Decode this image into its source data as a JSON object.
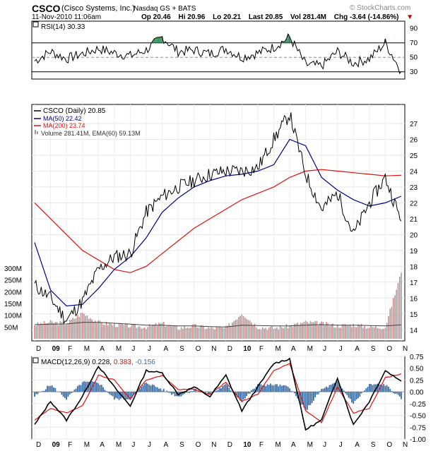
{
  "header": {
    "symbol": "CSCO",
    "name": "(Cisco Systems, Inc.)",
    "exchange": "Nasdaq GS + BATS",
    "brand": "© StockCharts.com",
    "date": "11-Nov-2010 11:06am",
    "open": "Op 20.46",
    "high": "Hi 20.96",
    "low": "Lo 20.21",
    "last": "Last 20.85",
    "volume": "Vol 281.4M",
    "change": "Chg -3.64 (-14.86%)",
    "change_marker": "▼"
  },
  "rsi_legend": "RSI(14) 30.33",
  "price_legend": {
    "main": "CSCO (Daily) 20.85",
    "ma50": "MA(50) 22.42",
    "ma200": "MA(200) 23.74",
    "volume": "Volume 281.41M, EMA(60) 59.13M"
  },
  "macd_legend": {
    "main": "MACD(12,26,9) 0.228,",
    "signal": "0.383,",
    "hist": "-0.156"
  },
  "colors": {
    "price": "#000000",
    "up_bar": "#000000",
    "down_bar": "#c00000",
    "ma50": "#00008b",
    "ma200": "#e01010",
    "volume_up": "#a0a0a0",
    "volume_down": "#e08080",
    "volume_ema": "#404040",
    "rsi_fill": "#2e8b57",
    "macd_hist": "#3a6ea5",
    "macd_signal": "#e01010"
  },
  "x_axis_labels": [
    "D",
    "09",
    "F",
    "M",
    "A",
    "M",
    "J",
    "J",
    "A",
    "S",
    "O",
    "N",
    "D",
    "10",
    "F",
    "M",
    "A",
    "M",
    "J",
    "J",
    "A",
    "S",
    "O",
    "N"
  ],
  "chart_data": [
    {
      "type": "line",
      "title": "RSI(14)",
      "ylim": [
        20,
        100
      ],
      "yticks": [
        30,
        50,
        70,
        90
      ],
      "reference_lines": [
        30,
        50,
        70
      ],
      "x": [
        "2008-12",
        "2009-01",
        "2009-02",
        "2009-03",
        "2009-04",
        "2009-05",
        "2009-06",
        "2009-07",
        "2009-08",
        "2009-09",
        "2009-10",
        "2009-11",
        "2009-12",
        "2010-01",
        "2010-02",
        "2010-03",
        "2010-04",
        "2010-05",
        "2010-06",
        "2010-07",
        "2010-08",
        "2010-09",
        "2010-10",
        "2010-11"
      ],
      "values": [
        45,
        58,
        48,
        55,
        62,
        56,
        52,
        60,
        78,
        58,
        60,
        55,
        62,
        50,
        56,
        64,
        78,
        40,
        38,
        58,
        42,
        48,
        70,
        30.33
      ]
    },
    {
      "type": "line",
      "title": "CSCO (Daily)",
      "ylim": [
        13.3,
        28.2
      ],
      "yticks": [
        14,
        15,
        16,
        17,
        18,
        19,
        20,
        21,
        22,
        23,
        24,
        25,
        26,
        27
      ],
      "x": [
        "2008-12",
        "2009-01",
        "2009-02",
        "2009-03",
        "2009-04",
        "2009-05",
        "2009-06",
        "2009-07",
        "2009-08",
        "2009-09",
        "2009-10",
        "2009-11",
        "2009-12",
        "2010-01",
        "2010-02",
        "2010-03",
        "2010-04",
        "2010-05",
        "2010-06",
        "2010-07",
        "2010-08",
        "2010-09",
        "2010-10",
        "2010-11"
      ],
      "series": [
        {
          "name": "CSCO (Daily)",
          "values": [
            16.8,
            16.0,
            14.6,
            15.8,
            17.8,
            18.6,
            18.8,
            21.4,
            22.4,
            23.0,
            23.4,
            23.8,
            24.0,
            24.0,
            24.2,
            26.0,
            27.6,
            23.8,
            21.6,
            22.6,
            20.0,
            22.0,
            23.6,
            20.85
          ]
        },
        {
          "name": "MA(50)",
          "values": [
            19.5,
            16.5,
            15.5,
            15.6,
            16.6,
            17.8,
            18.6,
            19.8,
            21.4,
            22.3,
            23.0,
            23.4,
            23.7,
            23.8,
            24.0,
            24.4,
            26.0,
            25.6,
            23.6,
            22.8,
            22.2,
            21.8,
            22.0,
            22.42
          ]
        },
        {
          "name": "MA(200)",
          "values": [
            22.0,
            21.0,
            20.0,
            19.0,
            18.4,
            17.8,
            17.6,
            18.0,
            18.8,
            19.6,
            20.4,
            21.0,
            21.6,
            22.2,
            22.6,
            23.0,
            23.6,
            24.0,
            24.1,
            24.0,
            23.9,
            23.8,
            23.7,
            23.74
          ]
        }
      ]
    },
    {
      "type": "bar",
      "title": "Volume",
      "ylim": [
        0,
        300
      ],
      "yticks": [
        50,
        100,
        150,
        200,
        250,
        300
      ],
      "ytick_labels": [
        "50M",
        "100M",
        "150M",
        "200M",
        "250M",
        "300M"
      ],
      "x": [
        "2008-12",
        "2009-01",
        "2009-02",
        "2009-03",
        "2009-04",
        "2009-05",
        "2009-06",
        "2009-07",
        "2009-08",
        "2009-09",
        "2009-10",
        "2009-11",
        "2009-12",
        "2010-01",
        "2010-02",
        "2010-03",
        "2010-04",
        "2010-05",
        "2010-06",
        "2010-07",
        "2010-08",
        "2010-09",
        "2010-10",
        "2010-11"
      ],
      "values": [
        60,
        70,
        65,
        110,
        70,
        60,
        55,
        50,
        65,
        45,
        55,
        45,
        45,
        110,
        50,
        45,
        55,
        70,
        65,
        55,
        60,
        50,
        50,
        281.41
      ],
      "ema": [
        60,
        62,
        63,
        70,
        70,
        66,
        62,
        58,
        58,
        55,
        55,
        52,
        50,
        58,
        56,
        55,
        55,
        58,
        60,
        58,
        58,
        56,
        55,
        59.13
      ]
    },
    {
      "type": "line",
      "title": "MACD(12,26,9)",
      "ylim": [
        -1.0,
        0.75
      ],
      "yticks": [
        -1.0,
        -0.75,
        -0.5,
        -0.25,
        0.0,
        0.25,
        0.5,
        0.75
      ],
      "ytick_labels": [
        "-1.00",
        "-0.75",
        "-0.50",
        "-0.25",
        "0.00",
        "0.25",
        "0.50",
        "0.75"
      ],
      "x": [
        "2008-12",
        "2009-01",
        "2009-02",
        "2009-03",
        "2009-04",
        "2009-05",
        "2009-06",
        "2009-07",
        "2009-08",
        "2009-09",
        "2009-10",
        "2009-11",
        "2009-12",
        "2010-01",
        "2010-02",
        "2010-03",
        "2010-04",
        "2010-05",
        "2010-06",
        "2010-07",
        "2010-08",
        "2010-09",
        "2010-10",
        "2010-11"
      ],
      "series": [
        {
          "name": "MACD",
          "values": [
            -0.7,
            -0.2,
            -0.6,
            -0.1,
            0.55,
            0.1,
            -0.3,
            0.45,
            0.4,
            -0.05,
            0.1,
            -0.1,
            0.35,
            -0.4,
            0.1,
            0.6,
            0.7,
            -0.8,
            -0.6,
            0.3,
            -0.7,
            -0.2,
            0.45,
            0.228
          ]
        },
        {
          "name": "Signal",
          "values": [
            -0.6,
            -0.35,
            -0.45,
            -0.3,
            0.35,
            0.25,
            -0.15,
            0.25,
            0.35,
            0.05,
            0.05,
            -0.05,
            0.2,
            -0.2,
            -0.05,
            0.45,
            0.6,
            -0.4,
            -0.65,
            0.1,
            -0.45,
            -0.35,
            0.3,
            0.383
          ]
        },
        {
          "name": "Histogram",
          "values": [
            -0.1,
            0.15,
            -0.15,
            0.2,
            0.2,
            -0.15,
            -0.15,
            0.2,
            0.05,
            -0.1,
            0.05,
            -0.05,
            0.15,
            -0.2,
            0.15,
            0.15,
            0.1,
            -0.4,
            0.05,
            0.2,
            -0.25,
            0.15,
            0.15,
            -0.156
          ]
        }
      ]
    }
  ]
}
